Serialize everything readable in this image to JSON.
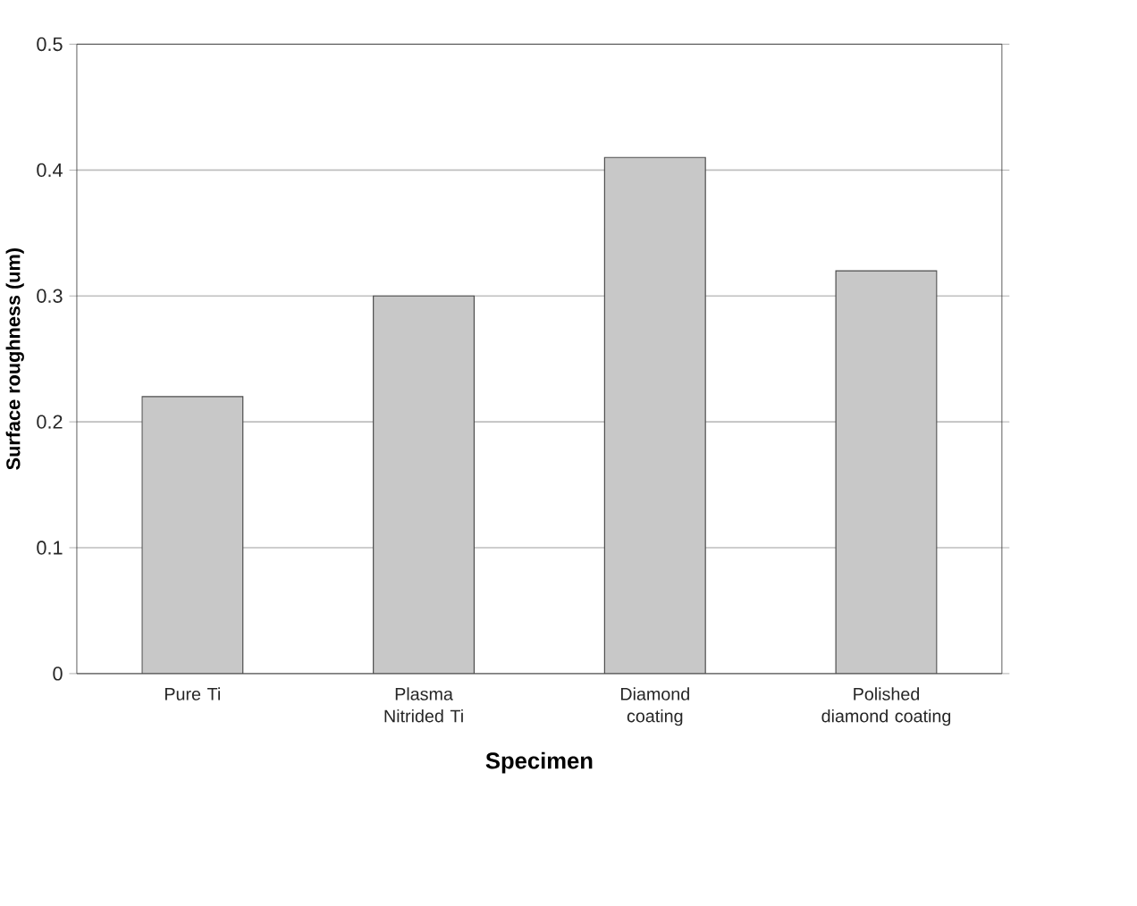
{
  "chart_data": {
    "type": "bar",
    "xlabel": "Specimen",
    "ylabel": "Surface roughness (um)",
    "categories": [
      "Pure Ti",
      "Plasma Nitrided Ti",
      "Diamond coating",
      "Polished diamond coating"
    ],
    "values": [
      0.22,
      0.3,
      0.41,
      0.32
    ],
    "color": "#c8c8c8",
    "ylim": [
      0,
      0.5
    ],
    "yticks": [
      0,
      0.1,
      0.2,
      0.3,
      0.4,
      0.5
    ],
    "grid": "y"
  }
}
